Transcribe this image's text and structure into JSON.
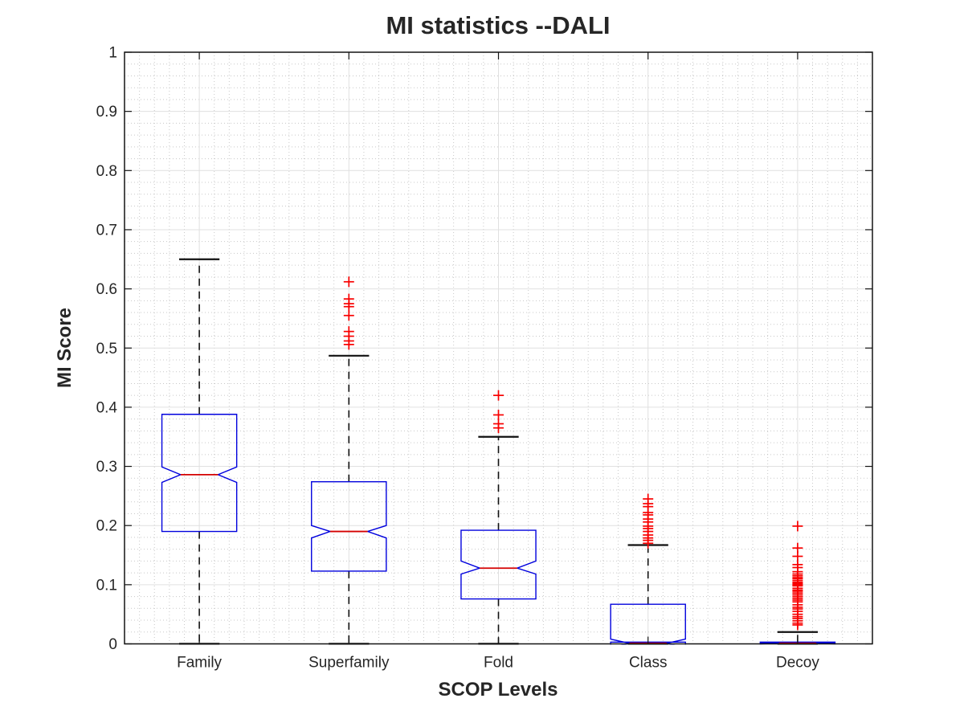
{
  "chart_data": {
    "type": "boxplot",
    "title": "MI statistics --DALI",
    "xlabel": "SCOP Levels",
    "ylabel": "MI Score",
    "categories": [
      "Family",
      "Superfamily",
      "Fold",
      "Class",
      "Decoy"
    ],
    "ylim": [
      0,
      1
    ],
    "ytick_values": [
      0,
      0.1,
      0.2,
      0.3,
      0.4,
      0.5,
      0.6,
      0.7,
      0.8,
      0.9,
      1
    ],
    "ytick_labels": [
      "0",
      "0.1",
      "0.2",
      "0.3",
      "0.4",
      "0.5",
      "0.6",
      "0.7",
      "0.8",
      "0.9",
      "1"
    ],
    "grid": {
      "major": true,
      "minor": true,
      "y_minor_step": 0.02,
      "x_minor_divisions_per_category": 10
    },
    "notched": true,
    "legend": "none",
    "boxes": [
      {
        "label": "Family",
        "whisker_low": 0,
        "q1": 0.19,
        "median": 0.286,
        "q3": 0.388,
        "whisker_high": 0.65,
        "notch_low": 0.273,
        "notch_high": 0.299,
        "outliers": []
      },
      {
        "label": "Superfamily",
        "whisker_low": 0,
        "q1": 0.123,
        "median": 0.19,
        "q3": 0.274,
        "whisker_high": 0.487,
        "notch_low": 0.179,
        "notch_high": 0.2,
        "outliers": [
          0.506,
          0.512,
          0.52,
          0.528,
          0.555,
          0.57,
          0.575,
          0.583,
          0.612
        ]
      },
      {
        "label": "Fold",
        "whisker_low": 0,
        "q1": 0.076,
        "median": 0.128,
        "q3": 0.192,
        "whisker_high": 0.35,
        "notch_low": 0.118,
        "notch_high": 0.14,
        "outliers": [
          0.365,
          0.372,
          0.387,
          0.42
        ]
      },
      {
        "label": "Class",
        "whisker_low": 0,
        "q1": 0.003,
        "median": 0.001,
        "q3": 0.067,
        "whisker_high": 0.167,
        "notch_low": -0.006,
        "notch_high": 0.008,
        "outliers": [
          0.17,
          0.175,
          0.179,
          0.184,
          0.19,
          0.195,
          0.199,
          0.206,
          0.211,
          0.218,
          0.222,
          0.232,
          0.237,
          0.245
        ]
      },
      {
        "label": "Decoy",
        "whisker_low": 0,
        "q1": 0.001,
        "median": 0.001,
        "q3": 0.003,
        "whisker_high": 0.02,
        "notch_low": 0.0,
        "notch_high": 0.002,
        "outliers": [
          0.032,
          0.035,
          0.039,
          0.043,
          0.046,
          0.05,
          0.055,
          0.059,
          0.062,
          0.066,
          0.071,
          0.074,
          0.077,
          0.08,
          0.083,
          0.086,
          0.089,
          0.091,
          0.094,
          0.098,
          0.1,
          0.102,
          0.104,
          0.107,
          0.11,
          0.112,
          0.115,
          0.118,
          0.122,
          0.129,
          0.134,
          0.148,
          0.162,
          0.199
        ]
      }
    ],
    "colors": {
      "box": "#0000dd",
      "median": "#d40000",
      "whisker": "#111111",
      "outlier": "#f80000",
      "axis_border": "#141414",
      "grid_major": "#e0e0e0",
      "grid_minor": "#bfbfbf",
      "text": "#262626",
      "background": "#ffffff"
    }
  }
}
